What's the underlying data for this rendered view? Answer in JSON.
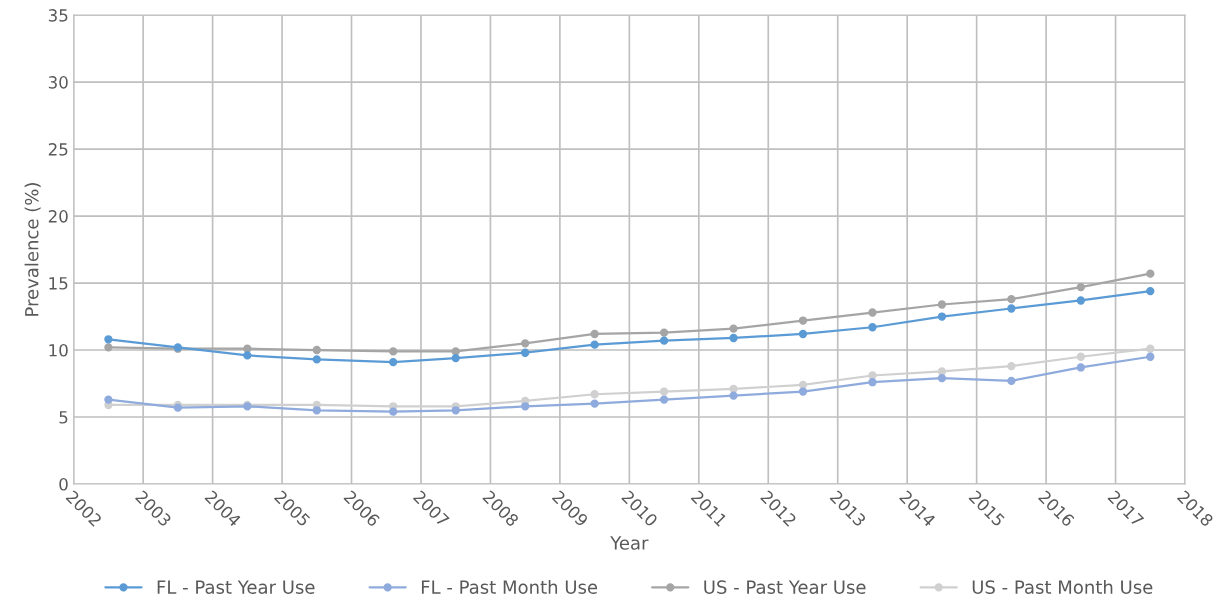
{
  "chart_data": {
    "type": "line",
    "xlabel": "Year",
    "ylabel": "Prevalence (%)",
    "x": [
      2002.5,
      2003.5,
      2004.5,
      2005.5,
      2006.6,
      2007.5,
      2008.5,
      2009.5,
      2010.5,
      2011.5,
      2012.5,
      2013.5,
      2014.5,
      2015.5,
      2016.5,
      2017.5
    ],
    "series": [
      {
        "name": "FL - Past Year Use",
        "color": "#5b9bd5",
        "values": [
          10.8,
          10.2,
          9.6,
          9.3,
          9.1,
          9.4,
          9.8,
          10.4,
          10.7,
          10.9,
          11.2,
          11.7,
          12.5,
          13.1,
          13.7,
          14.4
        ]
      },
      {
        "name": "FL - Past Month Use",
        "color": "#8faadc",
        "values": [
          6.3,
          5.7,
          5.8,
          5.5,
          5.4,
          5.5,
          5.8,
          6.0,
          6.3,
          6.6,
          6.9,
          7.6,
          7.9,
          7.7,
          8.7,
          9.5
        ]
      },
      {
        "name": "US - Past Year Use",
        "color": "#a5a5a5",
        "values": [
          10.2,
          10.1,
          10.1,
          10.0,
          9.9,
          9.9,
          10.5,
          11.2,
          11.3,
          11.6,
          12.2,
          12.8,
          13.4,
          13.8,
          14.7,
          15.7
        ]
      },
      {
        "name": "US - Past Month Use",
        "color": "#d0d0d0",
        "values": [
          5.9,
          5.9,
          5.9,
          5.9,
          5.8,
          5.8,
          6.2,
          6.7,
          6.9,
          7.1,
          7.4,
          8.1,
          8.4,
          8.8,
          9.5,
          10.1
        ]
      }
    ],
    "xlim": [
      2002,
      2018
    ],
    "xticks": [
      2002,
      2003,
      2004,
      2005,
      2006,
      2007,
      2008,
      2009,
      2010,
      2011,
      2012,
      2013,
      2014,
      2015,
      2016,
      2017,
      2018
    ],
    "ylim": [
      0,
      35
    ],
    "yticks": [
      0,
      5,
      10,
      15,
      20,
      25,
      30,
      35
    ],
    "grid": true,
    "legend": "bottom",
    "marker": "circle",
    "line_style": "solid"
  }
}
